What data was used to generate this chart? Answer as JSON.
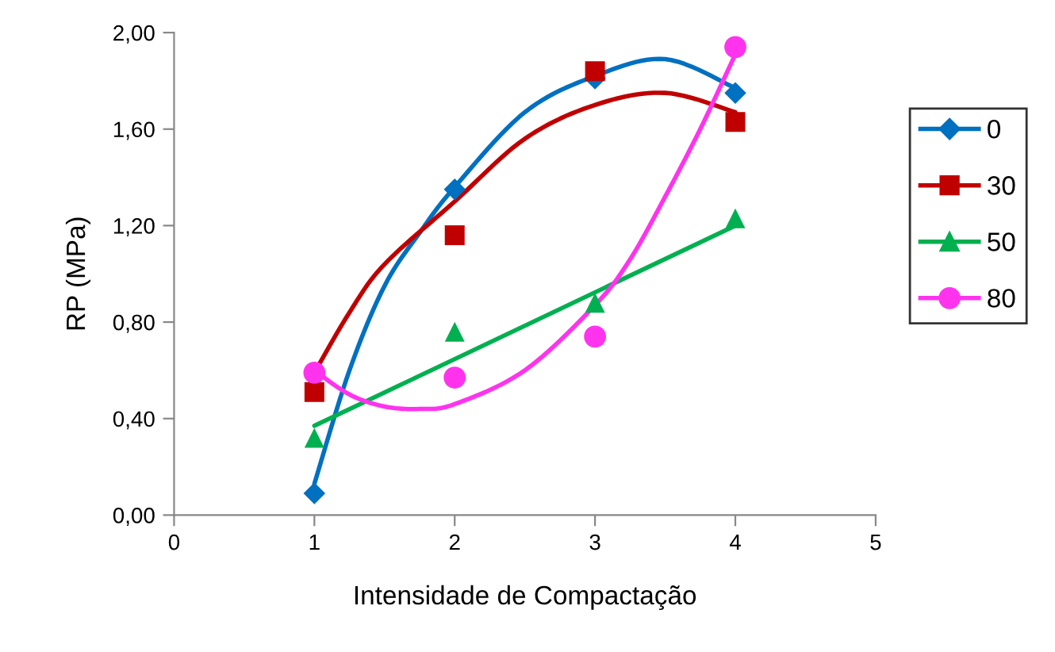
{
  "chart_data": {
    "type": "scatter",
    "xlabel": "Intensidade de Compactação",
    "ylabel": "RP (MPa)",
    "xlim": [
      0,
      5
    ],
    "xticks": [
      0,
      1,
      2,
      3,
      4,
      5
    ],
    "ylim": [
      0,
      2
    ],
    "yticks": [
      {
        "value": 0,
        "label": "0,00"
      },
      {
        "value": 0.4,
        "label": "0,40"
      },
      {
        "value": 0.8,
        "label": "0,80"
      },
      {
        "value": 1.2,
        "label": "1,20"
      },
      {
        "value": 1.6,
        "label": "1,60"
      },
      {
        "value": 2,
        "label": "2,00"
      }
    ],
    "grid": false,
    "legend": "right",
    "series": [
      {
        "type": "line",
        "color": "#0070c0",
        "x": [
          1,
          1.25,
          1.5,
          1.75,
          2,
          2.5,
          3,
          3.5,
          4
        ],
        "values": [
          0.13,
          0.6,
          0.95,
          1.17,
          1.36,
          1.67,
          1.82,
          1.89,
          1.77
        ]
      },
      {
        "type": "line",
        "color": "#c00000",
        "x": [
          1,
          1.25,
          1.5,
          2,
          2.5,
          3,
          3.5,
          4
        ],
        "values": [
          0.59,
          0.84,
          1.04,
          1.3,
          1.56,
          1.7,
          1.75,
          1.67
        ]
      },
      {
        "type": "line",
        "color": "#00b050",
        "x": [
          1,
          4
        ],
        "values": [
          0.37,
          1.2
        ]
      },
      {
        "type": "line",
        "color": "#ff33ee",
        "x": [
          1,
          1.25,
          1.5,
          1.75,
          2,
          2.5,
          3,
          3.25,
          3.5,
          3.75,
          4
        ],
        "values": [
          0.6,
          0.5,
          0.45,
          0.44,
          0.46,
          0.6,
          0.87,
          1.06,
          1.32,
          1.6,
          1.91
        ]
      },
      {
        "name": "0",
        "marker": "diamond",
        "color": "#0070c0",
        "x": [
          1,
          2,
          3,
          4
        ],
        "values": [
          0.09,
          1.35,
          1.81,
          1.75
        ]
      },
      {
        "name": "30",
        "marker": "square",
        "color": "#c00000",
        "x": [
          1,
          2,
          3,
          4
        ],
        "values": [
          0.51,
          1.16,
          1.84,
          1.63
        ]
      },
      {
        "name": "50",
        "marker": "triangle",
        "color": "#00b050",
        "x": [
          1,
          2,
          3,
          4
        ],
        "values": [
          0.32,
          0.76,
          0.88,
          1.23
        ]
      },
      {
        "name": "80",
        "marker": "circle",
        "color": "#ff33ee",
        "x": [
          1,
          2,
          3,
          4
        ],
        "values": [
          0.59,
          0.57,
          0.74,
          1.94
        ]
      }
    ]
  }
}
